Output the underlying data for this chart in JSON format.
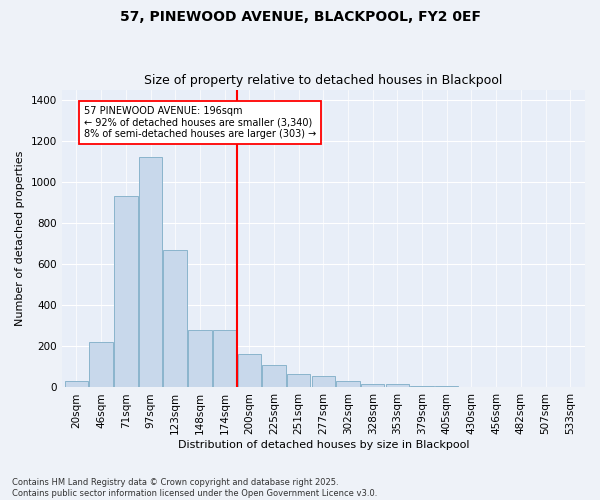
{
  "title": "57, PINEWOOD AVENUE, BLACKPOOL, FY2 0EF",
  "subtitle": "Size of property relative to detached houses in Blackpool",
  "xlabel": "Distribution of detached houses by size in Blackpool",
  "ylabel": "Number of detached properties",
  "bar_color": "#c8d8eb",
  "bar_edge_color": "#8ab4cc",
  "background_color": "#e8eef8",
  "fig_background": "#eef2f8",
  "categories": [
    "20sqm",
    "46sqm",
    "71sqm",
    "97sqm",
    "123sqm",
    "148sqm",
    "174sqm",
    "200sqm",
    "225sqm",
    "251sqm",
    "277sqm",
    "302sqm",
    "328sqm",
    "353sqm",
    "379sqm",
    "405sqm",
    "430sqm",
    "456sqm",
    "482sqm",
    "507sqm",
    "533sqm"
  ],
  "values": [
    30,
    220,
    930,
    1120,
    670,
    280,
    280,
    165,
    110,
    65,
    55,
    30,
    15,
    15,
    8,
    5,
    0,
    0,
    3,
    0,
    0
  ],
  "ylim": [
    0,
    1450
  ],
  "yticks": [
    0,
    200,
    400,
    600,
    800,
    1000,
    1200,
    1400
  ],
  "vline_index": 7,
  "vline_label": "57 PINEWOOD AVENUE: 196sqm",
  "annotation_line1": "← 92% of detached houses are smaller (3,340)",
  "annotation_line2": "8% of semi-detached houses are larger (303) →",
  "footer": "Contains HM Land Registry data © Crown copyright and database right 2025.\nContains public sector information licensed under the Open Government Licence v3.0.",
  "grid_color": "#ffffff",
  "title_fontsize": 10,
  "subtitle_fontsize": 9,
  "axis_fontsize": 8,
  "tick_fontsize": 7.5,
  "footer_fontsize": 6
}
